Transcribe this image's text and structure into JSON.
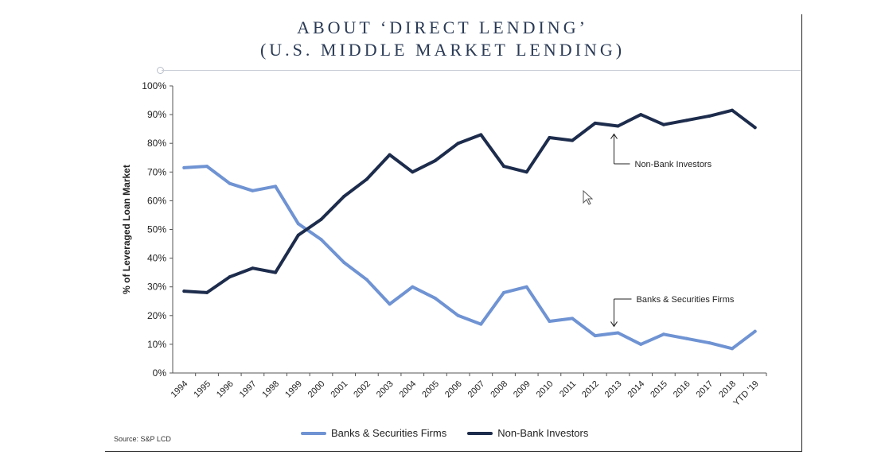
{
  "slide": {
    "title_line1": "ABOUT ‘DIRECT LENDING’",
    "title_line2": "(U.S. MIDDLE MARKET LENDING)",
    "source": "Source: S&P LCD"
  },
  "colors": {
    "banks": "#6f93d3",
    "nonbank": "#1d2c4c",
    "axis": "#555555",
    "title": "#2a3a55"
  },
  "chart_data": {
    "type": "line",
    "ylabel": "% of Leveraged Loan Market",
    "xlabel": "",
    "ylim": [
      0,
      100
    ],
    "y_ticks": [
      "0%",
      "10%",
      "20%",
      "30%",
      "40%",
      "50%",
      "60%",
      "70%",
      "80%",
      "90%",
      "100%"
    ],
    "categories": [
      "1994",
      "1995",
      "1996",
      "1997",
      "1998",
      "1999",
      "2000",
      "2001",
      "2002",
      "2003",
      "2004",
      "2005",
      "2006",
      "2007",
      "2008",
      "2009",
      "2010",
      "2011",
      "2012",
      "2013",
      "2014",
      "2015",
      "2016",
      "2017",
      "2018",
      "YTD '19"
    ],
    "series": [
      {
        "name": "Banks & Securities Firms",
        "values": [
          71.5,
          72,
          66,
          63.5,
          65,
          52,
          46.5,
          38.5,
          32.5,
          24,
          30,
          26,
          20,
          17,
          28,
          30,
          18,
          19,
          13,
          14,
          10,
          13.5,
          12,
          10.5,
          8.5,
          14.5
        ]
      },
      {
        "name": "Non-Bank Investors",
        "values": [
          28.5,
          28,
          33.5,
          36.5,
          35,
          48,
          53.5,
          61.5,
          67.5,
          76,
          70,
          74,
          80,
          83,
          72,
          70,
          82,
          81,
          87,
          86,
          90,
          86.5,
          88,
          89.5,
          91.5,
          85.5
        ]
      }
    ],
    "annotations": [
      {
        "text": "Non-Bank Investors",
        "series": "Non-Bank Investors",
        "category": "2013"
      },
      {
        "text": "Banks & Securities Firms",
        "series": "Banks & Securities Firms",
        "category": "2013"
      }
    ],
    "legend": "bottom-center",
    "grid": false
  }
}
